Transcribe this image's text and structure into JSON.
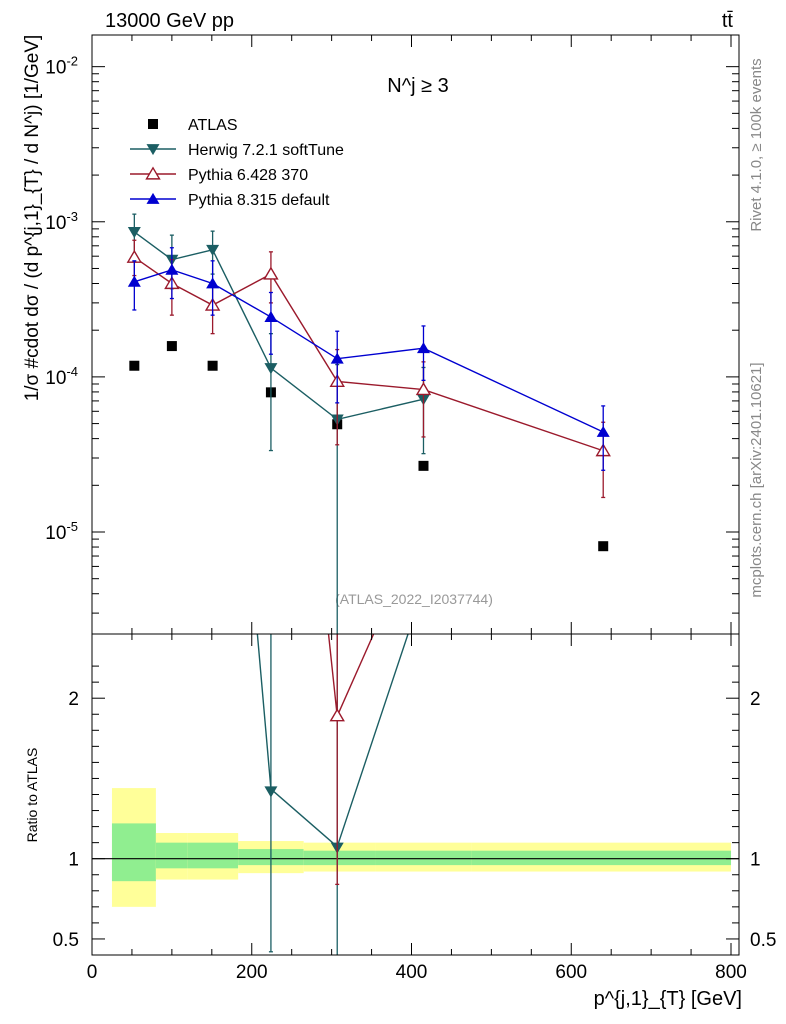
{
  "header": {
    "process": "13000 GeV pp",
    "channel": "tt̄"
  },
  "side_labels": {
    "rivet": "Rivet 4.1.0, ≥ 100k events",
    "source": "mcplots.cern.ch [arXiv:2401.10621]"
  },
  "chart_data": {
    "type": "scatter",
    "panel_title": "N^j ≥ 3",
    "analysis_tag": "(ATLAS_2022_I2037744)",
    "xlabel": "p^{j,1}_{T} [GeV]",
    "ylabel": "1/σ #cdot dσ / (d p^{j,1}_{T} / d N^j) [1/GeV]",
    "ratio_ylabel": "Ratio to ATLAS",
    "xlim": [
      0,
      810
    ],
    "ylim": [
      2.2e-06,
      0.016
    ],
    "yscale": "log",
    "ratio_ylim": [
      0.4,
      2.4
    ],
    "x_ticks": [
      "0",
      "200",
      "400",
      "600",
      "800"
    ],
    "y_ticks": [
      "10^-5",
      "10^-4",
      "10^-3",
      "10^-2"
    ],
    "ratio_ticks": [
      "0.5",
      "1",
      "2"
    ],
    "bins": [
      {
        "lo": 25,
        "hi": 80
      },
      {
        "lo": 80,
        "hi": 120
      },
      {
        "lo": 120,
        "hi": 183
      },
      {
        "lo": 183,
        "hi": 265
      },
      {
        "lo": 265,
        "hi": 355
      },
      {
        "lo": 355,
        "hi": 475
      },
      {
        "lo": 475,
        "hi": 800
      }
    ],
    "bands": [
      {
        "green": [
          0.86,
          1.22
        ],
        "yellow": [
          0.7,
          1.44
        ]
      },
      {
        "green": [
          0.94,
          1.1
        ],
        "yellow": [
          0.87,
          1.16
        ]
      },
      {
        "green": [
          0.94,
          1.1
        ],
        "yellow": [
          0.87,
          1.16
        ]
      },
      {
        "green": [
          0.96,
          1.06
        ],
        "yellow": [
          0.91,
          1.11
        ]
      },
      {
        "green": [
          0.96,
          1.05
        ],
        "yellow": [
          0.92,
          1.1
        ]
      },
      {
        "green": [
          0.96,
          1.05
        ],
        "yellow": [
          0.92,
          1.1
        ]
      },
      {
        "green": [
          0.96,
          1.05
        ],
        "yellow": [
          0.92,
          1.1
        ]
      }
    ],
    "series": [
      {
        "name": "ATLAS",
        "color": "#000000",
        "marker": "square",
        "points": [
          {
            "x": 53,
            "y": 0.000118
          },
          {
            "x": 100,
            "y": 0.000158
          },
          {
            "x": 151,
            "y": 0.000118
          },
          {
            "x": 224,
            "y": 7.95e-05
          },
          {
            "x": 307,
            "y": 4.95e-05
          },
          {
            "x": 415,
            "y": 2.67e-05
          },
          {
            "x": 640,
            "y": 8.1e-06
          }
        ]
      },
      {
        "name": "Herwig 7.2.1 softTune",
        "color": "#1b5e63",
        "marker": "triangle-down",
        "points": [
          {
            "x": 53,
            "y": 0.00086,
            "lo": 0.00062,
            "hi": 0.00112
          },
          {
            "x": 100,
            "y": 0.00057,
            "lo": 0.00037,
            "hi": 0.00082
          },
          {
            "x": 151,
            "y": 0.00066,
            "lo": 0.00046,
            "hi": 0.00087
          },
          {
            "x": 224,
            "y": 0.000114,
            "lo": 3.35e-05,
            "hi": 0.00019
          },
          {
            "x": 307,
            "y": 5.32e-05,
            "lo": 1e-06,
            "hi": 0.00012
          },
          {
            "x": 415,
            "y": 7.18e-05,
            "lo": 3.2e-05,
            "hi": 0.000115
          }
        ]
      },
      {
        "name": "Pythia 6.428 370",
        "color": "#9b1a2c",
        "marker": "triangle-up-open",
        "points": [
          {
            "x": 53,
            "y": 0.00059,
            "lo": 0.00045,
            "hi": 0.00076
          },
          {
            "x": 100,
            "y": 0.0004,
            "lo": 0.00025,
            "hi": 0.00057
          },
          {
            "x": 151,
            "y": 0.00029,
            "lo": 0.00019,
            "hi": 0.00041
          },
          {
            "x": 224,
            "y": 0.00046,
            "lo": 0.0003,
            "hi": 0.00064
          },
          {
            "x": 307,
            "y": 9.35e-05,
            "lo": 3.65e-05,
            "hi": 0.00015
          },
          {
            "x": 415,
            "y": 8.28e-05,
            "lo": 4.1e-05,
            "hi": 0.000125
          },
          {
            "x": 640,
            "y": 3.34e-05,
            "lo": 1.67e-05,
            "hi": 5.1e-05
          }
        ]
      },
      {
        "name": "Pythia 8.315 default",
        "color": "#0000d0",
        "marker": "triangle-up",
        "points": [
          {
            "x": 53,
            "y": 0.00041,
            "lo": 0.00027,
            "hi": 0.00056
          },
          {
            "x": 100,
            "y": 0.00049,
            "lo": 0.00032,
            "hi": 0.00068
          },
          {
            "x": 151,
            "y": 0.0004,
            "lo": 0.00025,
            "hi": 0.00056
          },
          {
            "x": 224,
            "y": 0.000243,
            "lo": 0.00014,
            "hi": 0.00035
          },
          {
            "x": 307,
            "y": 0.000131,
            "lo": 6.8e-05,
            "hi": 0.000197
          },
          {
            "x": 415,
            "y": 0.000153,
            "lo": 9.5e-05,
            "hi": 0.000213
          },
          {
            "x": 640,
            "y": 4.41e-05,
            "lo": 2.5e-05,
            "hi": 6.5e-05
          }
        ]
      }
    ],
    "ratio_points": [
      {
        "series": "Herwig 7.2.1 softTune",
        "x": 224,
        "y": 1.42,
        "lo": 0.42,
        "hi": 2.4
      },
      {
        "series": "Herwig 7.2.1 softTune",
        "x": 307,
        "y": 1.07,
        "lo": 0.4,
        "hi": 2.4
      },
      {
        "series": "Pythia 6.428 370",
        "x": 307,
        "y": 1.89,
        "lo": 0.84,
        "hi": 2.4
      }
    ]
  }
}
